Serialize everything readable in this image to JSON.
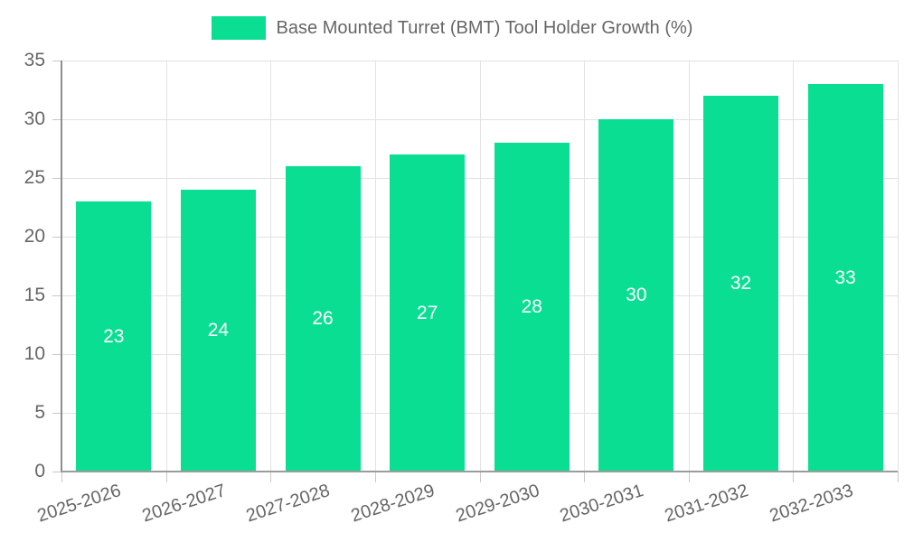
{
  "legend": {
    "label": "Base Mounted Turret (BMT) Tool Holder Growth (%)"
  },
  "chart_data": {
    "type": "bar",
    "title": "Base Mounted Turret (BMT) Tool Holder Growth (%)",
    "categories": [
      "2025-2026",
      "2026-2027",
      "2027-2028",
      "2028-2029",
      "2029-2030",
      "2030-2031",
      "2031-2032",
      "2032-2033"
    ],
    "values": [
      23,
      24,
      26,
      27,
      28,
      30,
      32,
      33
    ],
    "value_labels": [
      "23",
      "24",
      "26",
      "27",
      "28",
      "30",
      "32",
      "33"
    ],
    "xlabel": "",
    "ylabel": "",
    "ylim": [
      0,
      35
    ],
    "y_ticks": [
      0,
      5,
      10,
      15,
      20,
      25,
      30,
      35
    ],
    "grid": true,
    "legend_position": "top",
    "x_label_rotation_deg": -18
  },
  "colors": {
    "bar": "#0ade92",
    "grid": "#e2e2e2",
    "axis": "#9c9c9c",
    "tick_text": "#666666",
    "legend_text": "#666666",
    "value_text": "#ffffff",
    "background": "#ffffff"
  }
}
